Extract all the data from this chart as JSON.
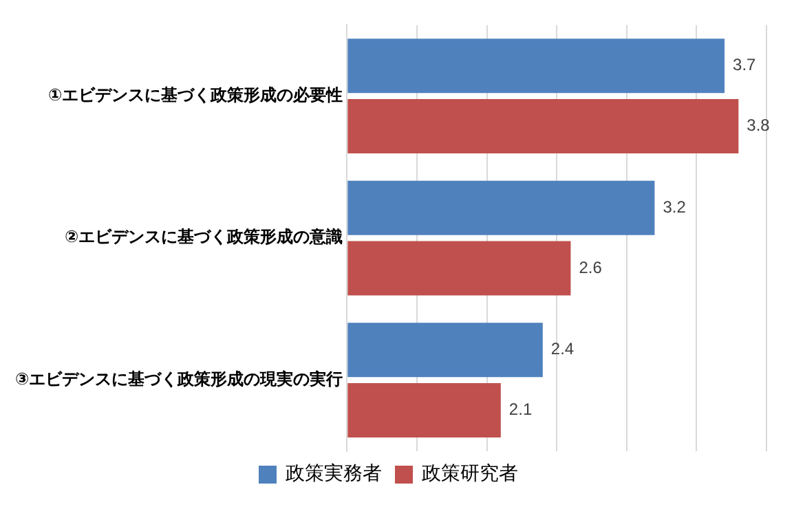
{
  "chart_data": {
    "type": "bar",
    "orientation": "horizontal",
    "categories": [
      "①エビデンスに基づく政策形成の必要性",
      "②エビデンスに基づく政策形成の意識",
      "③エビデンスに基づく政策形成の現実の実行"
    ],
    "series": [
      {
        "name": "政策実務者",
        "color": "#4f81bd",
        "values": [
          3.7,
          3.2,
          2.4
        ]
      },
      {
        "name": "政策研究者",
        "color": "#c0504d",
        "values": [
          3.8,
          2.6,
          2.1
        ]
      }
    ],
    "xlim": [
      1,
      4
    ],
    "xticks": [
      {
        "value": 1,
        "label": null
      },
      {
        "value": 1.5,
        "label": null
      },
      {
        "value": 2,
        "label": null
      },
      {
        "value": 2.5,
        "label": null
      },
      {
        "value": 3,
        "label": null
      },
      {
        "value": 3.5,
        "label": null
      },
      {
        "value": 4,
        "label": null
      }
    ],
    "tick_labels": "y",
    "grid": "x",
    "legend": "bottom",
    "data_labels": true
  }
}
